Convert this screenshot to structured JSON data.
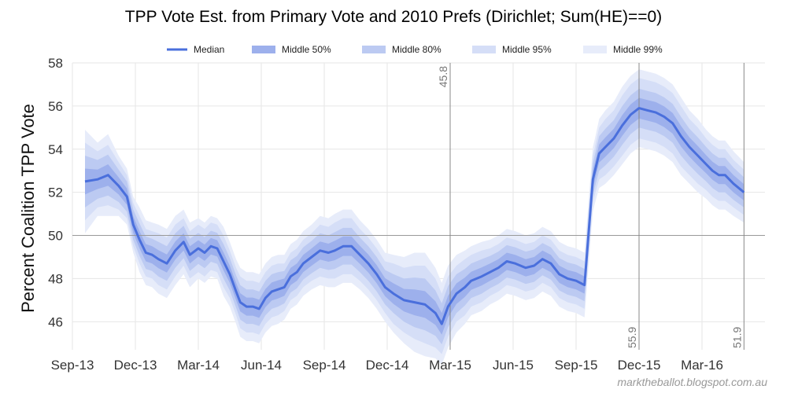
{
  "chart_data": {
    "type": "line",
    "title": "TPP Vote Est. from Primary Vote and 2010 Prefs (Dirichlet; Sum(HE)==0)",
    "ylabel": "Percent Coalition TPP Vote",
    "xlabel": "",
    "ylim": [
      44.7,
      58
    ],
    "yticks": [
      46,
      48,
      50,
      52,
      54,
      56,
      58
    ],
    "x_unit": "months since Sep-13",
    "xlim": [
      0,
      33
    ],
    "xticks": [
      {
        "label": "Sep-13",
        "x": 0
      },
      {
        "label": "Dec-13",
        "x": 3
      },
      {
        "label": "Mar-14",
        "x": 6
      },
      {
        "label": "Jun-14",
        "x": 9
      },
      {
        "label": "Sep-14",
        "x": 12
      },
      {
        "label": "Dec-14",
        "x": 15
      },
      {
        "label": "Mar-15",
        "x": 18
      },
      {
        "label": "Jun-15",
        "x": 21
      },
      {
        "label": "Sep-15",
        "x": 24
      },
      {
        "label": "Dec-15",
        "x": 27
      },
      {
        "label": "Mar-16",
        "x": 30
      }
    ],
    "grid": true,
    "legend_position": "top-center",
    "legend": [
      "Median",
      "Middle 50%",
      "Middle 80%",
      "Middle 95%",
      "Middle 99%"
    ],
    "series": [
      {
        "name": "Median",
        "x": [
          0.6,
          1.2,
          1.7,
          2.2,
          2.6,
          2.9,
          3.2,
          3.5,
          3.8,
          4.1,
          4.5,
          4.9,
          5.3,
          5.6,
          6.0,
          6.3,
          6.6,
          6.9,
          7.2,
          7.5,
          7.8,
          8.0,
          8.3,
          8.6,
          8.9,
          9.2,
          9.5,
          9.8,
          10.1,
          10.4,
          10.7,
          11.0,
          11.4,
          11.8,
          12.2,
          12.5,
          12.9,
          13.3,
          13.7,
          14.1,
          14.5,
          14.9,
          15.3,
          15.8,
          16.3,
          16.8,
          17.3,
          17.6,
          17.9,
          18.3,
          18.7,
          19.0,
          19.5,
          19.9,
          20.3,
          20.7,
          21.1,
          21.6,
          22.0,
          22.4,
          22.8,
          23.2,
          23.6,
          24.0,
          24.4,
          24.8,
          24.9,
          25.1,
          25.4,
          25.8,
          26.2,
          26.6,
          27.0,
          27.4,
          27.8,
          28.2,
          28.6,
          29.0,
          29.4,
          29.8,
          30.2,
          30.5,
          30.8,
          31.1,
          31.5,
          32.0
        ],
        "values": [
          52.5,
          52.6,
          52.8,
          52.3,
          51.8,
          50.5,
          49.8,
          49.2,
          49.1,
          48.9,
          48.7,
          49.3,
          49.7,
          49.1,
          49.4,
          49.2,
          49.5,
          49.4,
          48.8,
          48.2,
          47.4,
          46.9,
          46.7,
          46.7,
          46.6,
          47.1,
          47.4,
          47.5,
          47.6,
          48.1,
          48.3,
          48.7,
          49.0,
          49.3,
          49.2,
          49.3,
          49.5,
          49.5,
          49.1,
          48.7,
          48.2,
          47.6,
          47.3,
          47.0,
          46.9,
          46.8,
          46.4,
          45.9,
          46.7,
          47.3,
          47.6,
          47.9,
          48.1,
          48.3,
          48.5,
          48.8,
          48.7,
          48.5,
          48.6,
          48.9,
          48.7,
          48.2,
          48.0,
          47.9,
          47.7,
          52.6,
          53.0,
          53.8,
          54.1,
          54.5,
          55.1,
          55.6,
          55.9,
          55.8,
          55.7,
          55.5,
          55.2,
          54.6,
          54.1,
          53.7,
          53.3,
          53.0,
          52.8,
          52.8,
          52.4,
          52.0
        ]
      }
    ],
    "bands": [
      {
        "name": "Middle 99%",
        "half_width": [
          2.4,
          1.7,
          1.9,
          1.4,
          1.3,
          1.3,
          1.5,
          1.5,
          1.5,
          1.6,
          1.6,
          1.6,
          1.5,
          1.5,
          1.4,
          1.4,
          1.4,
          1.4,
          1.6,
          1.5,
          1.5,
          1.6,
          1.6,
          1.6,
          1.6,
          1.6,
          1.6,
          1.6,
          1.5,
          1.5,
          1.5,
          1.5,
          1.5,
          1.6,
          1.6,
          1.7,
          1.7,
          1.7,
          1.6,
          1.6,
          1.6,
          1.6,
          1.8,
          2.0,
          2.3,
          2.4,
          2.1,
          1.9,
          1.9,
          1.8,
          1.7,
          1.6,
          1.6,
          1.5,
          1.5,
          1.5,
          1.5,
          1.5,
          1.5,
          1.5,
          1.5,
          1.5,
          1.5,
          1.5,
          1.5,
          1.5,
          1.5,
          1.6,
          1.7,
          1.7,
          1.8,
          1.8,
          1.8,
          1.8,
          1.8,
          1.8,
          1.8,
          1.8,
          1.7,
          1.7,
          1.6,
          1.6,
          1.6,
          1.6,
          1.5,
          1.4
        ]
      },
      {
        "name": "Middle 95%",
        "half_width": [
          1.8,
          1.3,
          1.4,
          1.1,
          1.0,
          1.0,
          1.1,
          1.1,
          1.1,
          1.2,
          1.2,
          1.2,
          1.1,
          1.1,
          1.1,
          1.1,
          1.1,
          1.1,
          1.2,
          1.1,
          1.1,
          1.2,
          1.2,
          1.2,
          1.2,
          1.2,
          1.2,
          1.2,
          1.1,
          1.1,
          1.1,
          1.1,
          1.1,
          1.2,
          1.2,
          1.3,
          1.3,
          1.3,
          1.2,
          1.2,
          1.2,
          1.2,
          1.4,
          1.5,
          1.7,
          1.8,
          1.6,
          1.4,
          1.4,
          1.3,
          1.3,
          1.2,
          1.2,
          1.1,
          1.1,
          1.1,
          1.1,
          1.1,
          1.1,
          1.1,
          1.1,
          1.1,
          1.1,
          1.1,
          1.1,
          1.1,
          1.1,
          1.2,
          1.3,
          1.3,
          1.4,
          1.4,
          1.4,
          1.4,
          1.4,
          1.4,
          1.4,
          1.4,
          1.3,
          1.3,
          1.2,
          1.2,
          1.2,
          1.2,
          1.1,
          1.05
        ]
      },
      {
        "name": "Middle 80%",
        "half_width": [
          1.2,
          0.9,
          0.95,
          0.75,
          0.7,
          0.7,
          0.75,
          0.75,
          0.75,
          0.8,
          0.8,
          0.8,
          0.75,
          0.75,
          0.72,
          0.72,
          0.72,
          0.72,
          0.8,
          0.75,
          0.75,
          0.8,
          0.8,
          0.8,
          0.8,
          0.8,
          0.8,
          0.8,
          0.75,
          0.75,
          0.75,
          0.75,
          0.75,
          0.8,
          0.8,
          0.85,
          0.85,
          0.85,
          0.8,
          0.8,
          0.8,
          0.8,
          0.9,
          1.0,
          1.15,
          1.2,
          1.05,
          0.95,
          0.95,
          0.9,
          0.85,
          0.8,
          0.8,
          0.75,
          0.75,
          0.75,
          0.75,
          0.75,
          0.75,
          0.75,
          0.75,
          0.75,
          0.75,
          0.75,
          0.75,
          0.75,
          0.75,
          0.8,
          0.85,
          0.85,
          0.9,
          0.9,
          0.9,
          0.9,
          0.9,
          0.9,
          0.9,
          0.9,
          0.85,
          0.85,
          0.8,
          0.8,
          0.8,
          0.8,
          0.75,
          0.7
        ]
      },
      {
        "name": "Middle 50%",
        "half_width": [
          0.6,
          0.45,
          0.5,
          0.4,
          0.38,
          0.38,
          0.4,
          0.4,
          0.4,
          0.42,
          0.42,
          0.42,
          0.4,
          0.4,
          0.38,
          0.38,
          0.38,
          0.38,
          0.42,
          0.4,
          0.4,
          0.42,
          0.42,
          0.42,
          0.42,
          0.42,
          0.42,
          0.42,
          0.4,
          0.4,
          0.4,
          0.4,
          0.4,
          0.42,
          0.42,
          0.45,
          0.45,
          0.45,
          0.42,
          0.42,
          0.42,
          0.42,
          0.48,
          0.52,
          0.6,
          0.62,
          0.55,
          0.5,
          0.5,
          0.48,
          0.45,
          0.42,
          0.42,
          0.4,
          0.4,
          0.4,
          0.4,
          0.4,
          0.4,
          0.4,
          0.4,
          0.4,
          0.4,
          0.4,
          0.4,
          0.4,
          0.4,
          0.42,
          0.45,
          0.45,
          0.48,
          0.48,
          0.48,
          0.48,
          0.48,
          0.48,
          0.48,
          0.48,
          0.45,
          0.45,
          0.42,
          0.42,
          0.42,
          0.42,
          0.4,
          0.38
        ]
      }
    ],
    "reference_line_y": 50,
    "annotations": [
      {
        "label": "45.8",
        "x": 18.0,
        "anchor": "top"
      },
      {
        "label": "55.9",
        "x": 27.0,
        "anchor": "bottom"
      },
      {
        "label": "51.9",
        "x": 32.0,
        "anchor": "bottom"
      }
    ],
    "credit": "marktheballot.blogspot.com.au",
    "colors": {
      "median": "#4a6fdc",
      "band50": "#9db0ec",
      "band80": "#bccaf2",
      "band95": "#d5def7",
      "band99": "#e7ecfa",
      "grid": "#e6e6e6",
      "refline": "#999999",
      "annot_line": "#888888"
    }
  }
}
